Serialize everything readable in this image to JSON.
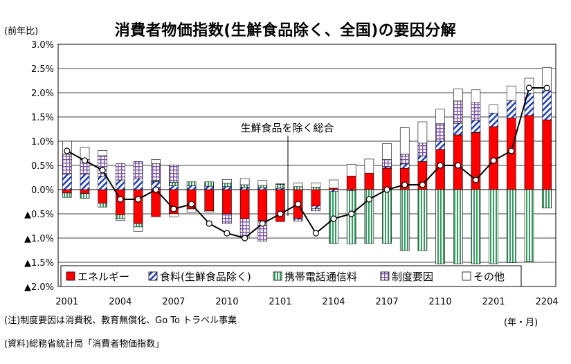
{
  "title": "消費者物価指数(生鮮食品除く、全国)の要因分解",
  "unit_label": "(前年比)",
  "x_unit_label": "(年・月)",
  "note": "(注)制度要因は消費税、教育無償化、Go To トラベル事業",
  "source": "(資料)総務省統計局「消費者物価指数」",
  "annotation": "生鮮食品を除く総合",
  "colors": {
    "energy": "#ff0000",
    "food_hatch": "#1f3fbf",
    "telecom_stripe": "#2e9e5b",
    "policy_check": "#7b4fa8",
    "other": "#ffffff",
    "line": "#000000"
  },
  "chart_data": {
    "type": "bar",
    "stacked": true,
    "ylim": [
      -2.0,
      3.0
    ],
    "yticks": [
      3.0,
      2.5,
      2.0,
      1.5,
      1.0,
      0.5,
      0.0,
      -0.5,
      -1.0,
      -1.5,
      -2.0
    ],
    "ytick_labels": [
      "3.0%",
      "2.5%",
      "2.0%",
      "1.5%",
      "1.0%",
      "0.5%",
      "0.0%",
      "▲0.5%",
      "▲1.0%",
      "▲1.5%",
      "▲2.0%"
    ],
    "categories": [
      "2001",
      "2002",
      "2003",
      "2004",
      "2005",
      "2006",
      "2007",
      "2008",
      "2009",
      "2010",
      "2011",
      "2012",
      "2101",
      "2102",
      "2103",
      "2104",
      "2105",
      "2106",
      "2107",
      "2108",
      "2109",
      "2110",
      "2111",
      "2112",
      "2201",
      "2202",
      "2203",
      "2204"
    ],
    "xtick_labels": [
      "2001",
      "2004",
      "2007",
      "2010",
      "2101",
      "2104",
      "2107",
      "2110",
      "2201",
      "2204"
    ],
    "series": [
      {
        "name": "エネルギー",
        "key": "energy",
        "values": [
          -0.07,
          -0.08,
          -0.28,
          -0.52,
          -0.7,
          -0.56,
          -0.5,
          -0.4,
          -0.44,
          -0.5,
          -0.6,
          -0.64,
          -0.66,
          -0.59,
          -0.34,
          0.03,
          0.28,
          0.34,
          0.44,
          0.44,
          0.58,
          0.83,
          1.13,
          1.18,
          1.3,
          1.48,
          1.53,
          1.44
        ]
      },
      {
        "name": "食料(生鮮食品除く)",
        "key": "food",
        "values": [
          0.32,
          0.32,
          0.28,
          0.2,
          0.22,
          0.16,
          0.08,
          0.08,
          0.07,
          0.06,
          0.05,
          0.04,
          0.03,
          -0.02,
          -0.05,
          -0.04,
          -0.02,
          0.0,
          0.03,
          0.09,
          0.12,
          0.17,
          0.24,
          0.25,
          0.28,
          0.36,
          0.46,
          0.6
        ]
      },
      {
        "name": "携帯電話通信料",
        "key": "telecom",
        "values": [
          -0.09,
          -0.1,
          -0.08,
          -0.08,
          -0.07,
          0.02,
          0.07,
          0.08,
          0.09,
          0.07,
          0.05,
          0.05,
          0.08,
          0.06,
          0.05,
          -1.07,
          -1.1,
          -1.11,
          -1.11,
          -1.26,
          -1.26,
          -1.53,
          -1.53,
          -1.53,
          -1.53,
          -1.51,
          -1.48,
          -0.38
        ]
      },
      {
        "name": "制度要因",
        "key": "policy",
        "values": [
          0.41,
          0.3,
          0.42,
          0.34,
          0.36,
          0.36,
          0.36,
          0.0,
          0.0,
          -0.2,
          -0.4,
          -0.42,
          0.0,
          -0.04,
          -0.05,
          0.0,
          0.0,
          0.0,
          0.15,
          0.2,
          0.26,
          0.36,
          0.46,
          0.36,
          0.0,
          0.0,
          0.0,
          0.0
        ]
      },
      {
        "name": "その他",
        "key": "other",
        "values": [
          0.27,
          0.25,
          0.11,
          -0.04,
          -0.09,
          0.08,
          -0.06,
          -0.07,
          -0.02,
          0.08,
          0.13,
          0.1,
          0.01,
          0.08,
          0.09,
          0.17,
          0.24,
          0.29,
          0.33,
          0.55,
          0.44,
          0.3,
          0.25,
          0.27,
          0.17,
          0.3,
          0.31,
          0.48
        ]
      },
      {
        "name": "生鮮食品を除く総合",
        "key": "total",
        "kind": "line",
        "values": [
          0.8,
          0.6,
          0.4,
          -0.2,
          -0.2,
          0.0,
          -0.4,
          -0.3,
          -0.7,
          -0.9,
          -1.0,
          -0.7,
          -0.5,
          -0.3,
          -0.9,
          -0.6,
          -0.5,
          -0.2,
          0.0,
          0.1,
          0.1,
          0.5,
          0.5,
          0.2,
          0.6,
          0.8,
          2.1,
          2.1
        ]
      }
    ],
    "legend": [
      "エネルギー",
      "食料(生鮮食品除く)",
      "携帯電話通信料",
      "制度要因",
      "その他"
    ],
    "legend_position": "bottom-left inside"
  }
}
